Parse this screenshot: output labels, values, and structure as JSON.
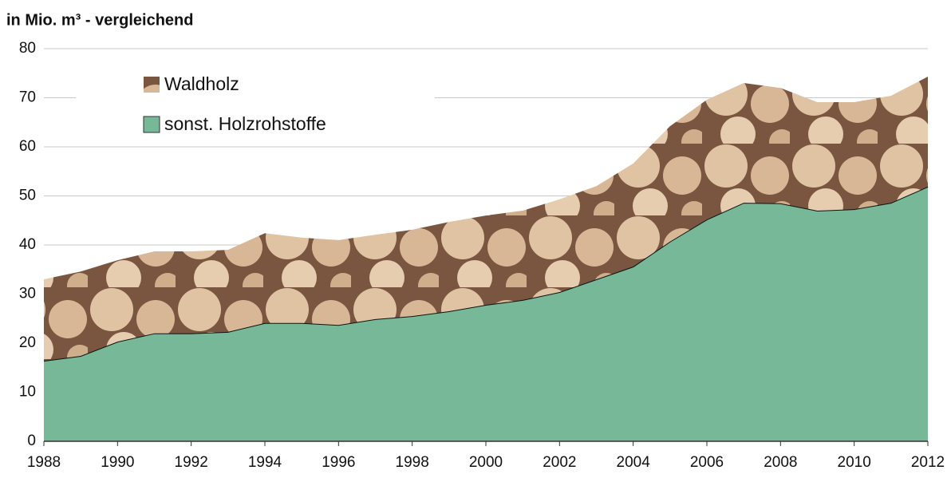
{
  "chart_data": {
    "type": "stacked-area",
    "title": "in Mio. m³ - vergleichend",
    "x": [
      1988,
      1989,
      1990,
      1991,
      1992,
      1993,
      1994,
      1995,
      1996,
      1997,
      1998,
      1999,
      2000,
      2001,
      2002,
      2003,
      2004,
      2005,
      2006,
      2007,
      2008,
      2009,
      2010,
      2011,
      2012
    ],
    "series": [
      {
        "name": "Waldholz",
        "color": "#c9a584",
        "values": [
          16.6,
          17.2,
          16.6,
          16.7,
          16.7,
          16.7,
          18.3,
          17.4,
          17.3,
          17.2,
          17.6,
          18.2,
          18.2,
          18.2,
          18.9,
          19.0,
          21.0,
          23.5,
          24.4,
          24.4,
          23.5,
          22.1,
          21.8,
          21.8,
          22.4
        ]
      },
      {
        "name": "sonst. Holzrohstoffe",
        "color": "#76b898",
        "values": [
          16.4,
          17.4,
          20.3,
          22.0,
          22.0,
          22.3,
          24.1,
          24.1,
          23.7,
          24.9,
          25.5,
          26.5,
          27.8,
          28.8,
          30.4,
          33.0,
          35.6,
          40.7,
          45.2,
          48.6,
          48.5,
          47.0,
          47.3,
          48.6,
          51.9
        ]
      }
    ],
    "xlim": [
      1988,
      2012
    ],
    "xticks": [
      1988,
      1990,
      1992,
      1994,
      1996,
      1998,
      2000,
      2002,
      2004,
      2006,
      2008,
      2010,
      2012
    ],
    "ylim": [
      0,
      80
    ],
    "yticks": [
      0,
      10,
      20,
      30,
      40,
      50,
      60,
      70,
      80
    ],
    "grid": true
  }
}
